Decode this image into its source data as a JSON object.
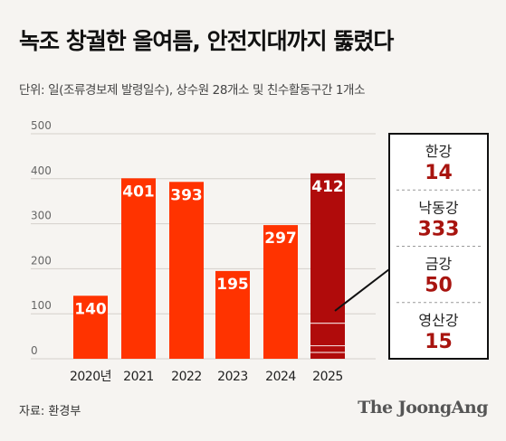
{
  "title": "녹조 창궐한 올여름, 안전지대까지 뚫렸다",
  "subtitle": "단위: 일(조류경보제 발령일수), 상수원 28개소 및 친수활동구간 1개소",
  "source": "자료: 환경부",
  "brand": "The JoongAng",
  "colors": {
    "bar": "#ff3300",
    "highlight": "#b00b0b",
    "panel_value": "#a8140f",
    "background": "#f6f4f1"
  },
  "chart_data": {
    "type": "bar",
    "title": "녹조 창궐한 올여름, 안전지대까지 뚫렸다",
    "categories": [
      "2020년",
      "2021",
      "2022",
      "2023",
      "2024",
      "2025"
    ],
    "values": [
      140,
      401,
      393,
      195,
      297,
      412
    ],
    "data_labels": [
      "140",
      "401",
      "393",
      "195",
      "297",
      "412"
    ],
    "highlight_index": 5,
    "ylim": [
      0,
      500
    ],
    "yticks": [
      "0",
      "100",
      "200",
      "300",
      "400",
      "500"
    ],
    "grid": true,
    "breakdown": {
      "category": "2025",
      "segments": [
        {
          "name": "한강",
          "value": 14,
          "label": "14"
        },
        {
          "name": "낙동강",
          "value": 333,
          "label": "333"
        },
        {
          "name": "금강",
          "value": 50,
          "label": "50"
        },
        {
          "name": "영산강",
          "value": 15,
          "label": "15"
        }
      ]
    }
  }
}
